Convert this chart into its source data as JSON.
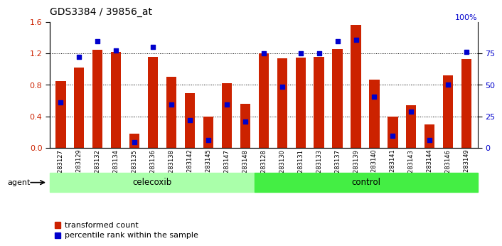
{
  "title": "GDS3384 / 39856_at",
  "categories": [
    "GSM283127",
    "GSM283129",
    "GSM283132",
    "GSM283134",
    "GSM283135",
    "GSM283136",
    "GSM283138",
    "GSM283142",
    "GSM283145",
    "GSM283147",
    "GSM283148",
    "GSM283128",
    "GSM283130",
    "GSM283131",
    "GSM283133",
    "GSM283137",
    "GSM283139",
    "GSM283140",
    "GSM283141",
    "GSM283143",
    "GSM283144",
    "GSM283146",
    "GSM283149"
  ],
  "red_values": [
    0.85,
    1.02,
    1.25,
    1.22,
    0.18,
    1.16,
    0.9,
    0.7,
    0.4,
    0.82,
    0.56,
    1.2,
    1.14,
    1.15,
    1.16,
    1.26,
    1.56,
    0.87,
    0.4,
    0.54,
    0.3,
    0.92,
    1.13
  ],
  "blue_values_left_scale": [
    0.575,
    1.16,
    1.36,
    1.24,
    0.07,
    1.28,
    0.55,
    0.35,
    0.1,
    0.55,
    0.335,
    1.205,
    0.78,
    1.2,
    1.2,
    1.36,
    1.37,
    0.65,
    0.15,
    0.46,
    0.1,
    0.8,
    1.22
  ],
  "celecoxib_count": 11,
  "control_count": 12,
  "bar_color": "#cc2200",
  "dot_color": "#0000cc",
  "celecoxib_color": "#aaffaa",
  "control_color": "#44ee44",
  "agent_label": "agent",
  "celecoxib_label": "celecoxib",
  "control_label": "control",
  "legend_red": "transformed count",
  "legend_blue": "percentile rank within the sample",
  "ylim_left": [
    0,
    1.6
  ],
  "ylim_right": [
    0,
    100
  ],
  "yticks_left": [
    0,
    0.4,
    0.8,
    1.2,
    1.6
  ],
  "yticks_right_vals": [
    0,
    25,
    50,
    75
  ],
  "yticks_right_labels": [
    "0",
    "25",
    "50",
    "75"
  ],
  "grid_lines": [
    0.4,
    0.8,
    1.2
  ],
  "bg_color": "#ffffff"
}
